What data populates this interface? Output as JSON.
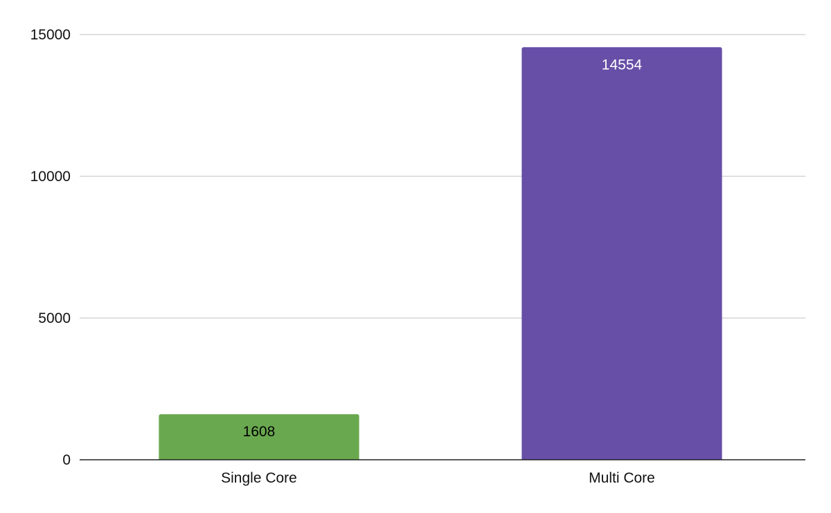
{
  "chart_data": {
    "type": "bar",
    "categories": [
      "Single Core",
      "Multi Core"
    ],
    "values": [
      1608,
      14554
    ],
    "bar_colors": [
      "#6aa84f",
      "#674ea7"
    ],
    "data_label_colors": [
      "#000000",
      "#ffffff"
    ],
    "data_labels": [
      "1608",
      "14554"
    ],
    "yticks": [
      0,
      5000,
      10000,
      15000
    ],
    "ylim": [
      0,
      15000
    ],
    "grid": true,
    "legend": "none"
  }
}
